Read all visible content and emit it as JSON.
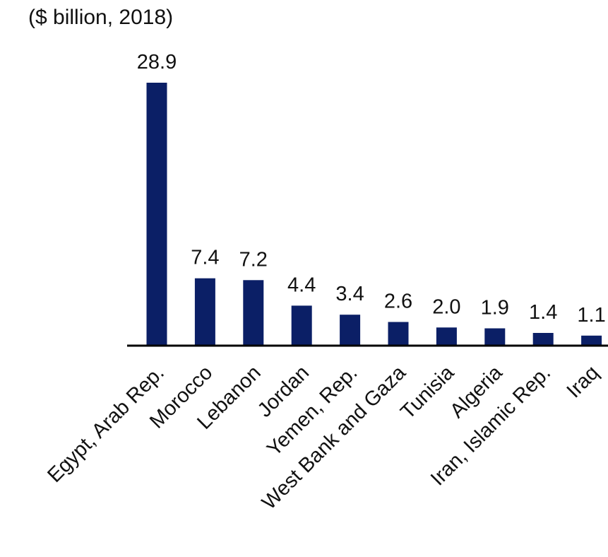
{
  "colors": {
    "bar": "#0B1F66",
    "axis": "#000000",
    "text": "#111111"
  },
  "chart_data": {
    "type": "bar",
    "unit_label": "($ billion, 2018)",
    "categories": [
      "Egypt, Arab Rep.",
      "Morocco",
      "Lebanon",
      "Jordan",
      "Yemen, Rep.",
      "West Bank and Gaza",
      "Tunisia",
      "Algeria",
      "Iran, Islamic Rep.",
      "Iraq"
    ],
    "values": [
      28.9,
      7.4,
      7.2,
      4.4,
      3.4,
      2.6,
      2.0,
      1.9,
      1.4,
      1.1
    ],
    "value_labels": [
      "28.9",
      "7.4",
      "7.2",
      "4.4",
      "3.4",
      "2.6",
      "2.0",
      "1.9",
      "1.4",
      "1.1"
    ],
    "ylim": [
      0,
      28.9
    ],
    "grid": false,
    "legend": "none"
  }
}
